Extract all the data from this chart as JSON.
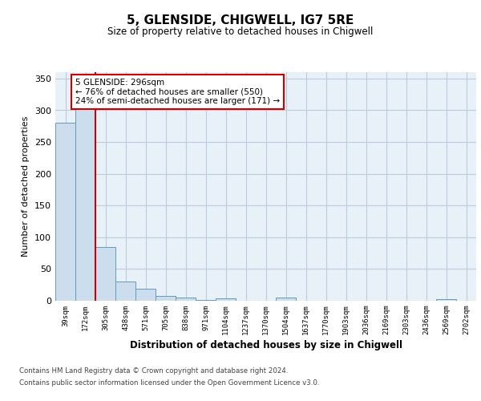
{
  "title": "5, GLENSIDE, CHIGWELL, IG7 5RE",
  "subtitle": "Size of property relative to detached houses in Chigwell",
  "xlabel": "Distribution of detached houses by size in Chigwell",
  "ylabel": "Number of detached properties",
  "categories": [
    "39sqm",
    "172sqm",
    "305sqm",
    "438sqm",
    "571sqm",
    "705sqm",
    "838sqm",
    "971sqm",
    "1104sqm",
    "1237sqm",
    "1370sqm",
    "1504sqm",
    "1637sqm",
    "1770sqm",
    "1903sqm",
    "2036sqm",
    "2169sqm",
    "2303sqm",
    "2436sqm",
    "2569sqm",
    "2702sqm"
  ],
  "values": [
    280,
    310,
    85,
    30,
    19,
    8,
    5,
    1,
    4,
    0,
    0,
    5,
    0,
    0,
    0,
    0,
    0,
    0,
    0,
    3,
    0
  ],
  "bar_color": "#ccdded",
  "bar_edge_color": "#6699bb",
  "red_line_x": 1.5,
  "red_line_color": "#cc0000",
  "annotation_text": "5 GLENSIDE: 296sqm\n← 76% of detached houses are smaller (550)\n24% of semi-detached houses are larger (171) →",
  "annotation_box_color": "white",
  "annotation_box_edge": "#cc0000",
  "ylim": [
    0,
    360
  ],
  "yticks": [
    0,
    50,
    100,
    150,
    200,
    250,
    300,
    350
  ],
  "grid_color": "#bbccdd",
  "footer_line1": "Contains HM Land Registry data © Crown copyright and database right 2024.",
  "footer_line2": "Contains public sector information licensed under the Open Government Licence v3.0.",
  "bg_color": "#ffffff",
  "plot_bg_color": "#e8f0f8"
}
